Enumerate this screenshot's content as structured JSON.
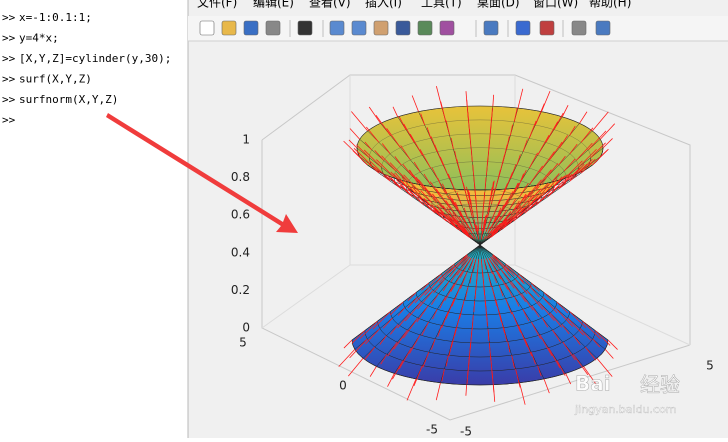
{
  "command_window": {
    "prompt": ">>",
    "lines": [
      "x=-1:0.1:1;",
      "y=4*x;",
      "[X,Y,Z]=cylinder(y,30);",
      "surf(X,Y,Z)",
      "surfnorm(X,Y,Z)"
    ]
  },
  "figure": {
    "menu": [
      "文件(F)",
      "编辑(E)",
      "查看(V)",
      "插入(I)",
      "工具(T)",
      "桌面(D)",
      "窗口(W)",
      "帮助(H)"
    ],
    "axes": {
      "zticks": [
        0,
        0.2,
        0.4,
        0.6,
        0.8,
        1
      ],
      "yticks": [
        5,
        0,
        -5
      ],
      "xticks": [
        -5,
        5
      ]
    }
  },
  "watermark": {
    "logo": "Bai",
    "brand": "经验",
    "url": "jingyan.baidu.com"
  }
}
